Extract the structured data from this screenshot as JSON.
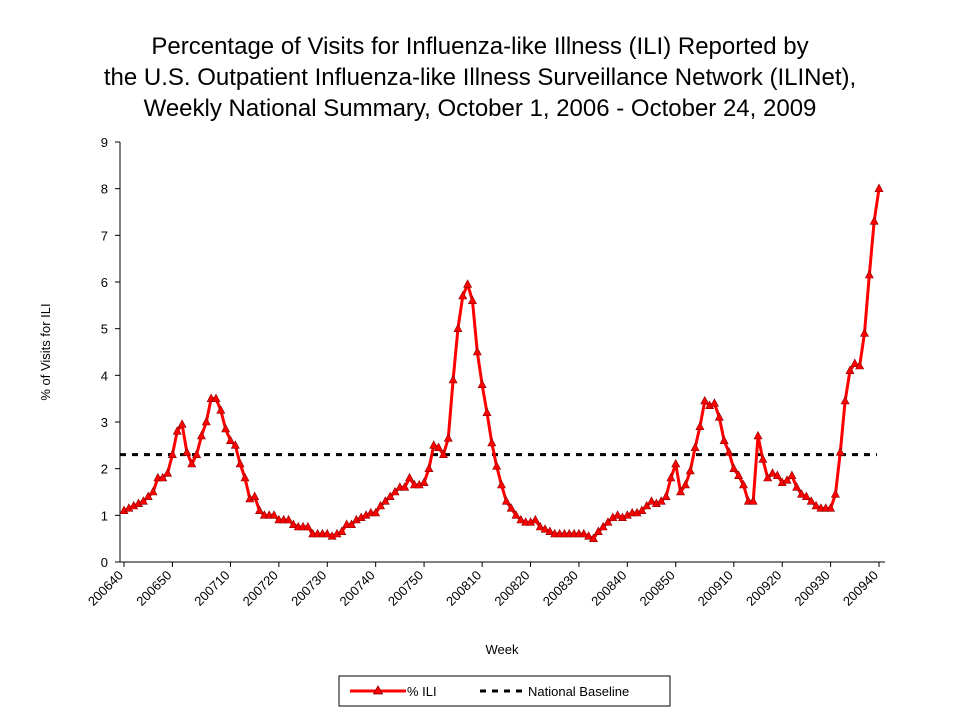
{
  "chart_data": {
    "type": "line",
    "title": [
      "Percentage of Visits for Influenza-like Illness (ILI) Reported by",
      "the U.S. Outpatient Influenza-like Illness Surveillance Network (ILINet),",
      "Weekly National Summary, October 1, 2006 - October 24, 2009"
    ],
    "xlabel": "Week",
    "ylabel": "% of Visits for ILI",
    "ylim": [
      0,
      9
    ],
    "yticks": [
      0,
      1,
      2,
      3,
      4,
      5,
      6,
      7,
      8,
      9
    ],
    "x_tick_labels": [
      {
        "label": "200640",
        "index": 0
      },
      {
        "label": "200650",
        "index": 10
      },
      {
        "label": "200710",
        "index": 22
      },
      {
        "label": "200720",
        "index": 32
      },
      {
        "label": "200730",
        "index": 42
      },
      {
        "label": "200740",
        "index": 52
      },
      {
        "label": "200750",
        "index": 62
      },
      {
        "label": "200810",
        "index": 74
      },
      {
        "label": "200820",
        "index": 84
      },
      {
        "label": "200830",
        "index": 94
      },
      {
        "label": "200840",
        "index": 104
      },
      {
        "label": "200850",
        "index": 114
      },
      {
        "label": "200910",
        "index": 126
      },
      {
        "label": "200920",
        "index": 136
      },
      {
        "label": "200930",
        "index": 146
      },
      {
        "label": "200940",
        "index": 156
      }
    ],
    "grid": false,
    "legend_position": "bottom-center",
    "series": [
      {
        "name": "% ILI",
        "color": "#ff0000",
        "marker": "triangle",
        "values": [
          1.1,
          1.15,
          1.2,
          1.25,
          1.3,
          1.4,
          1.5,
          1.8,
          1.8,
          1.9,
          2.3,
          2.8,
          2.95,
          2.35,
          2.1,
          2.3,
          2.7,
          3.0,
          3.5,
          3.5,
          3.25,
          2.85,
          2.6,
          2.5,
          2.1,
          1.8,
          1.35,
          1.4,
          1.1,
          1.0,
          1.0,
          1.0,
          0.9,
          0.9,
          0.9,
          0.8,
          0.75,
          0.75,
          0.75,
          0.6,
          0.6,
          0.6,
          0.6,
          0.55,
          0.6,
          0.65,
          0.8,
          0.8,
          0.9,
          0.95,
          1.0,
          1.05,
          1.05,
          1.2,
          1.3,
          1.4,
          1.5,
          1.6,
          1.6,
          1.8,
          1.65,
          1.65,
          1.7,
          2.0,
          2.5,
          2.45,
          2.3,
          2.65,
          3.9,
          5.0,
          5.7,
          5.95,
          5.6,
          4.5,
          3.8,
          3.2,
          2.55,
          2.05,
          1.65,
          1.3,
          1.15,
          1.0,
          0.9,
          0.85,
          0.85,
          0.9,
          0.75,
          0.7,
          0.65,
          0.6,
          0.6,
          0.6,
          0.6,
          0.6,
          0.6,
          0.6,
          0.55,
          0.5,
          0.65,
          0.75,
          0.85,
          0.95,
          1.0,
          0.95,
          1.0,
          1.05,
          1.05,
          1.1,
          1.2,
          1.3,
          1.25,
          1.3,
          1.4,
          1.8,
          2.1,
          1.5,
          1.65,
          1.95,
          2.45,
          2.9,
          3.45,
          3.35,
          3.4,
          3.1,
          2.6,
          2.35,
          2.0,
          1.85,
          1.65,
          1.3,
          1.3,
          2.7,
          2.2,
          1.8,
          1.9,
          1.85,
          1.7,
          1.75,
          1.85,
          1.6,
          1.45,
          1.4,
          1.3,
          1.2,
          1.15,
          1.15,
          1.15,
          1.45,
          2.35,
          3.45,
          4.1,
          4.25,
          4.2,
          4.9,
          6.15,
          7.3,
          8.0
        ]
      },
      {
        "name": "National Baseline",
        "color": "#000000",
        "style": "dashed",
        "constant": 2.3
      }
    ]
  }
}
